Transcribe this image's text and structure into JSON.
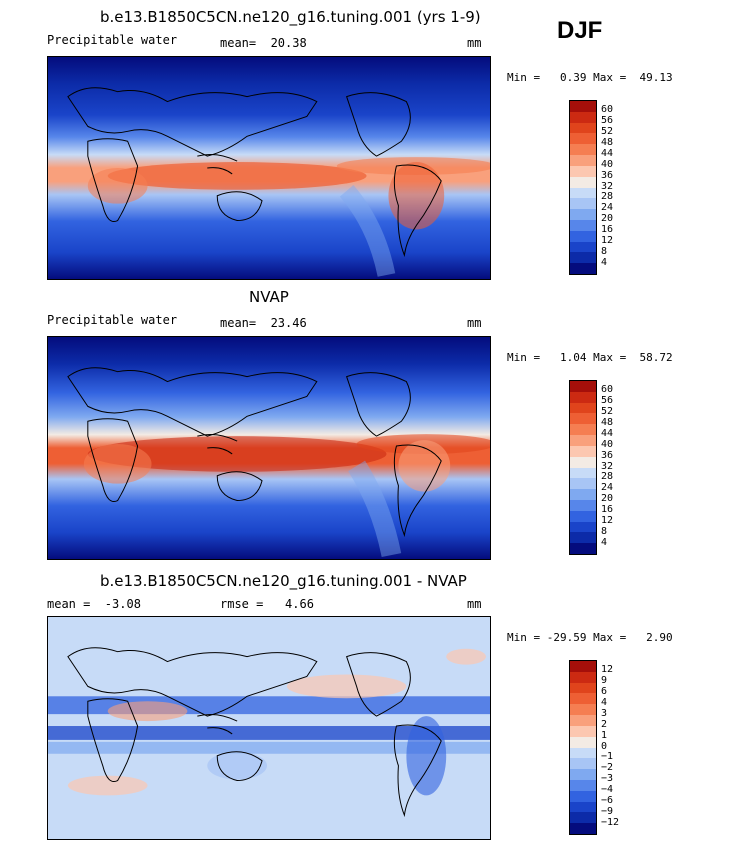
{
  "season": "DJF",
  "panels": [
    {
      "title": "b.e13.B1850C5CN.ne120_g16.tuning.001 (yrs 1-9)",
      "left_label": "Precipitable water",
      "mid_label": "mean=  20.38",
      "right_label": "mm",
      "stats": "Min =   0.39 Max =  49.13",
      "colorbar": {
        "levels": [
          "60",
          "56",
          "52",
          "48",
          "44",
          "40",
          "36",
          "32",
          "28",
          "24",
          "20",
          "16",
          "12",
          "8",
          "4"
        ],
        "colors": [
          "#a50f0a",
          "#cc2a12",
          "#e0441c",
          "#ee5f34",
          "#f57e52",
          "#f9a07c",
          "#fcc7b0",
          "#f3ebe4",
          "#c7dbf7",
          "#a8c5f5",
          "#7fa9f0",
          "#5786ea",
          "#3263e0",
          "#1a44c9",
          "#0c2ba8",
          "#040c7d"
        ]
      }
    },
    {
      "title": "NVAP",
      "left_label": "Precipitable water",
      "mid_label": "mean=  23.46",
      "right_label": "mm",
      "stats": "Min =   1.04 Max =  58.72",
      "colorbar": {
        "levels": [
          "60",
          "56",
          "52",
          "48",
          "44",
          "40",
          "36",
          "32",
          "28",
          "24",
          "20",
          "16",
          "12",
          "8",
          "4"
        ],
        "colors": [
          "#a50f0a",
          "#cc2a12",
          "#e0441c",
          "#ee5f34",
          "#f57e52",
          "#f9a07c",
          "#fcc7b0",
          "#f3ebe4",
          "#c7dbf7",
          "#a8c5f5",
          "#7fa9f0",
          "#5786ea",
          "#3263e0",
          "#1a44c9",
          "#0c2ba8",
          "#040c7d"
        ]
      }
    },
    {
      "title": "b.e13.B1850C5CN.ne120_g16.tuning.001 - NVAP",
      "left_label": "mean =  -3.08",
      "mid_label": "rmse =   4.66",
      "right_label": "mm",
      "stats": "Min = -29.59 Max =   2.90",
      "colorbar": {
        "levels": [
          "12",
          "9",
          "6",
          "4",
          "3",
          "2",
          "1",
          "0",
          "−1",
          "−2",
          "−3",
          "−4",
          "−6",
          "−9",
          "−12"
        ],
        "colors": [
          "#a50f0a",
          "#cc2a12",
          "#e0441c",
          "#ee5f34",
          "#f57e52",
          "#f9a07c",
          "#fcc7b0",
          "#f3ebe4",
          "#c7dbf7",
          "#a8c5f5",
          "#7fa9f0",
          "#5786ea",
          "#3263e0",
          "#1a44c9",
          "#0c2ba8",
          "#040c7d"
        ]
      }
    }
  ]
}
